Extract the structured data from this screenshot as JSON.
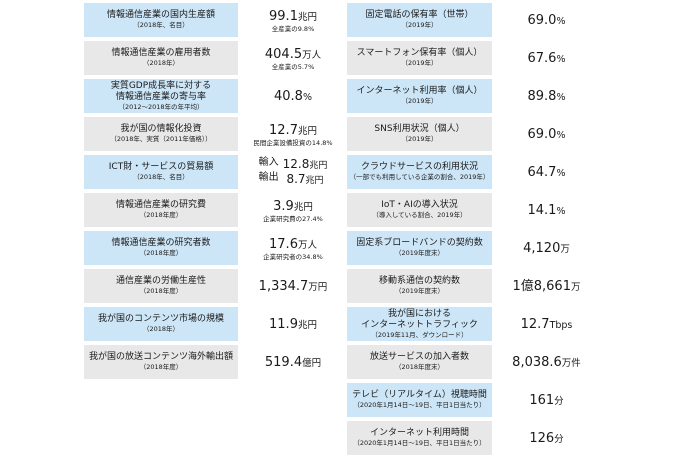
{
  "left": [
    {
      "label": [
        "情報通信産業の国内生産額"
      ],
      "note": "（2018年、名目）",
      "value": "99.1",
      "unit": "兆円",
      "sub": "全産業の9.8%"
    },
    {
      "label": [
        "情報通信産業の雇用者数"
      ],
      "note": "（2018年）",
      "value": "404.5",
      "unit": "万人",
      "sub": "全産業の5.7%"
    },
    {
      "label": [
        "実質GDP成長率に対する",
        "情報通信産業の寄与率"
      ],
      "note": "（2012～2018年の年平均）",
      "value": "40.8",
      "unit": "%",
      "sub": ""
    },
    {
      "label": [
        "我が国の情報化投資"
      ],
      "note": "（2018年、実質（2011年価格））",
      "value": "12.7",
      "unit": "兆円",
      "sub": "民間企業設備投資の14.8%"
    },
    {
      "label": [
        "ICT財・サービスの貿易額"
      ],
      "note": "（2018年、名目）",
      "trade": [
        {
          "kind": "輸入",
          "value": "12.8",
          "unit": "兆円"
        },
        {
          "kind": "輸出",
          "value": "8.7",
          "unit": "兆円"
        }
      ]
    },
    {
      "label": [
        "情報通信産業の研究費"
      ],
      "note": "（2018年度）",
      "value": "3.9",
      "unit": "兆円",
      "sub": "企業研究費の27.4%"
    },
    {
      "label": [
        "情報通信産業の研究者数"
      ],
      "note": "（2018年度）",
      "value": "17.6",
      "unit": "万人",
      "sub": "企業研究者の34.8%"
    },
    {
      "label": [
        "通信産業の労働生産性"
      ],
      "note": "（2018年度）",
      "value": "1,334.7",
      "unit": "万円",
      "sub": ""
    },
    {
      "label": [
        "我が国のコンテンツ市場の規模"
      ],
      "note": "（2018年）",
      "value": "11.9",
      "unit": "兆円",
      "sub": ""
    },
    {
      "label": [
        "我が国の放送コンテンツ海外輸出額"
      ],
      "note": "（2018年度）",
      "value": "519.4",
      "unit": "億円",
      "sub": ""
    }
  ],
  "right": [
    {
      "label": [
        "固定電話の保有率（世帯）"
      ],
      "note": "（2019年）",
      "value": "69.0",
      "unit": "%"
    },
    {
      "label": [
        "スマートフォン保有率（個人）"
      ],
      "note": "（2019年）",
      "value": "67.6",
      "unit": "%"
    },
    {
      "label": [
        "インターネット利用率（個人）"
      ],
      "note": "（2019年）",
      "value": "89.8",
      "unit": "%"
    },
    {
      "label": [
        "SNS利用状況（個人）"
      ],
      "note": "（2019年）",
      "value": "69.0",
      "unit": "%"
    },
    {
      "label": [
        "クラウドサービスの利用状況"
      ],
      "note": "（一部でも利用している企業の割合、2019年）",
      "value": "64.7",
      "unit": "%"
    },
    {
      "label": [
        "IoT・AIの導入状況"
      ],
      "note": "（導入している割合、2019年）",
      "value": "14.1",
      "unit": "%"
    },
    {
      "label": [
        "固定系ブロードバンドの契約数"
      ],
      "note": "（2019年度末）",
      "value": "4,120",
      "unit": "万"
    },
    {
      "label": [
        "移動系通信の契約数"
      ],
      "note": "（2019年度末）",
      "value": "1億8,661",
      "unit": "万"
    },
    {
      "label": [
        "我が国における",
        "インターネットトラフィック"
      ],
      "note": "（2019年11月、ダウンロード）",
      "value": "12.7",
      "unit": "Tbps"
    },
    {
      "label": [
        "放送サービスの加入者数"
      ],
      "note": "（2018年度末）",
      "value": "8,038.6",
      "unit": "万件"
    },
    {
      "label": [
        "テレビ（リアルタイム）視聴時間"
      ],
      "note": "（2020年1月14日～19日、平日1日当たり）",
      "value": "161",
      "unit": "分"
    },
    {
      "label": [
        "インターネット利用時間"
      ],
      "note": "（2020年1月14日～19日、平日1日当たり）",
      "value": "126",
      "unit": "分"
    }
  ],
  "colors": {
    "blue": "#cde6f7",
    "gray": "#e8e8e8"
  }
}
